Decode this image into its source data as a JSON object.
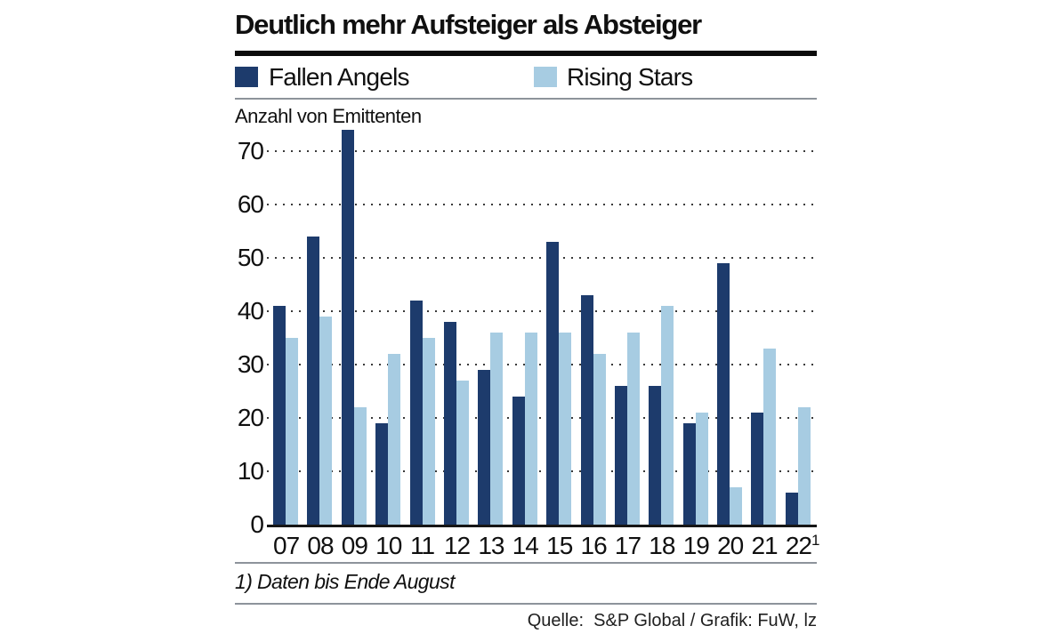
{
  "notes": {
    "footnote": "1) Daten bis Ende August",
    "source": "Quelle:  S&P Global / Grafik: FuW, lz"
  },
  "colors": {
    "fallen_angels": "#1d3b6c",
    "rising_stars": "#a7cce2",
    "rule_gray": "#8d939b",
    "title_rule_black": "#0c0c0c"
  },
  "chart_data": {
    "type": "bar",
    "title": "Deutlich mehr Aufsteiger als Absteiger",
    "ylabel": "Anzahl von Emittenten",
    "xlabel": "",
    "categories": [
      "07",
      "08",
      "09",
      "10",
      "11",
      "12",
      "13",
      "14",
      "15",
      "16",
      "17",
      "18",
      "19",
      "20",
      "21",
      "22"
    ],
    "last_category_superscript": "1",
    "series": [
      {
        "name": "Fallen Angels",
        "color": "#1d3b6c",
        "values": [
          41,
          54,
          74,
          19,
          42,
          38,
          29,
          24,
          53,
          43,
          26,
          26,
          19,
          49,
          21,
          6
        ]
      },
      {
        "name": "Rising Stars",
        "color": "#a7cce2",
        "values": [
          35,
          39,
          22,
          32,
          35,
          27,
          36,
          36,
          36,
          32,
          36,
          41,
          21,
          7,
          33,
          22
        ]
      }
    ],
    "ylim": [
      0,
      70
    ],
    "yticks": [
      0,
      10,
      20,
      30,
      40,
      50,
      60,
      70
    ],
    "grid": "dotted horizontal",
    "legend_position": "top"
  }
}
